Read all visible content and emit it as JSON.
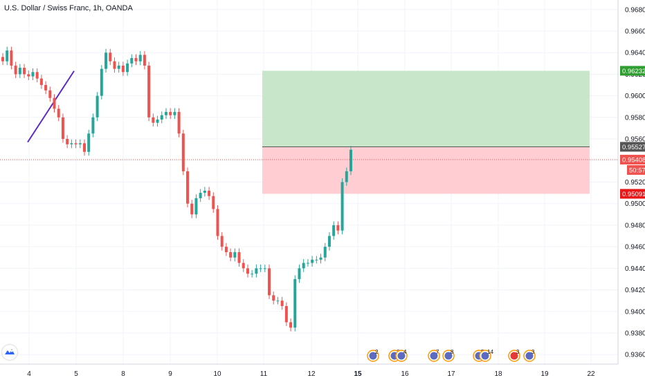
{
  "chart_data": {
    "type": "candlestick",
    "title": "U.S. Dollar / Swiss Franc, 1h, OANDA",
    "x_ticks": [
      "4",
      "5",
      "8",
      "9",
      "10",
      "11",
      "12",
      "15",
      "16",
      "17",
      "18",
      "19",
      "22"
    ],
    "x_ticks_bold": [
      "15"
    ],
    "y_ticks": [
      "0.96800",
      "0.96600",
      "0.96400",
      "0.96200",
      "0.96000",
      "0.95800",
      "0.95600",
      "0.95400",
      "0.95200",
      "0.95000",
      "0.94800",
      "0.94600",
      "0.94400",
      "0.94200",
      "0.94000",
      "0.93800",
      "0.93600"
    ],
    "ylim": [
      0.9355,
      0.9685
    ],
    "grid": true,
    "up_color": "#26a69a",
    "down_color": "#ef5350",
    "close_series": [
      0.9632,
      0.9642,
      0.9628,
      0.962,
      0.9626,
      0.962,
      0.9618,
      0.9622,
      0.9616,
      0.961,
      0.9605,
      0.9598,
      0.9588,
      0.958,
      0.956,
      0.9555,
      0.9556,
      0.9555,
      0.9556,
      0.9548,
      0.9565,
      0.958,
      0.96,
      0.9625,
      0.964,
      0.9632,
      0.9625,
      0.9628,
      0.9622,
      0.963,
      0.9635,
      0.9632,
      0.9638,
      0.9628,
      0.958,
      0.9575,
      0.9578,
      0.9582,
      0.9585,
      0.9582,
      0.9585,
      0.9565,
      0.953,
      0.95,
      0.949,
      0.9505,
      0.951,
      0.9512,
      0.9507,
      0.9495,
      0.947,
      0.946,
      0.9455,
      0.945,
      0.9455,
      0.9445,
      0.944,
      0.9435,
      0.9435,
      0.944,
      0.944,
      0.944,
      0.9415,
      0.941,
      0.941,
      0.9405,
      0.939,
      0.9385,
      0.943,
      0.944,
      0.9445,
      0.9445,
      0.9448,
      0.9448,
      0.945,
      0.946,
      0.947,
      0.948,
      0.9475,
      0.952,
      0.953,
      0.955
    ],
    "position": {
      "type": "long",
      "entry": 0.95527,
      "target": 0.96232,
      "stop": 0.95091,
      "profit_color": "#c8e6c9",
      "loss_color": "#ffcdd2"
    },
    "current_price": 0.95408,
    "countdown": "50:57",
    "price_tags": [
      {
        "label": "0.96232",
        "value": 0.96232,
        "color": "#2e9e30"
      },
      {
        "label": "0.95527",
        "value": 0.95527,
        "color": "#555555"
      },
      {
        "label": "0.95408",
        "value": 0.95408,
        "color": "#ef5350"
      },
      {
        "label": "0.95091",
        "value": 0.95091,
        "color": "#e81818"
      }
    ],
    "trend_line": {
      "from": [
        0.0,
        0.9557
      ],
      "to": [
        0.2,
        0.9623
      ],
      "color": "#5b2bc2"
    },
    "events": [
      "2",
      "3",
      "4",
      "7",
      "8",
      "5",
      "14",
      "3",
      "3"
    ]
  }
}
